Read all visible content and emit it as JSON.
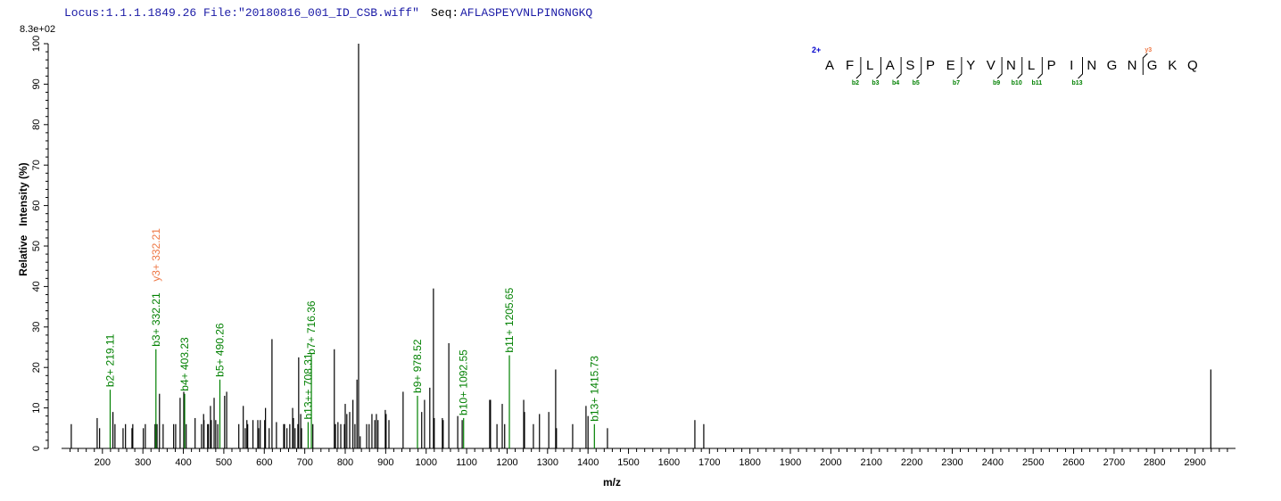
{
  "header": {
    "locus": "Locus:1.1.1.1849.26 File:\"20180816_001_ID_CSB.wiff\"",
    "seq_label": "Seq:",
    "seq_value": "AFLASPEYVNLPINGNGKQ",
    "max_intensity": "8.3e+02"
  },
  "colors": {
    "peak": "#000000",
    "b_ion": "#008000",
    "y_ion": "#ee7744",
    "charge": "#0000cc",
    "header": "#1a1aa6"
  },
  "chart_data": {
    "type": "bar",
    "xlabel": "m/z",
    "ylabel": "Relative   Intensity (%)",
    "xlim": [
      99,
      3000
    ],
    "ylim": [
      0,
      100
    ],
    "x_ticks": [
      200,
      300,
      400,
      500,
      600,
      700,
      800,
      900,
      1000,
      1100,
      1200,
      1300,
      1400,
      1500,
      1600,
      1700,
      1800,
      1900,
      2000,
      2100,
      2200,
      2300,
      2400,
      2500,
      2600,
      2700,
      2800,
      2900
    ],
    "y_ticks": [
      0,
      10,
      20,
      30,
      40,
      50,
      60,
      70,
      80,
      90,
      100
    ],
    "grid": false,
    "peaks": [
      [
        123,
        6
      ],
      [
        187,
        7.5
      ],
      [
        193,
        5
      ],
      [
        226,
        9
      ],
      [
        231,
        6
      ],
      [
        251,
        5
      ],
      [
        257,
        6
      ],
      [
        273,
        5
      ],
      [
        275,
        6
      ],
      [
        301,
        5
      ],
      [
        306,
        6
      ],
      [
        330,
        6
      ],
      [
        335,
        6
      ],
      [
        341,
        13.5
      ],
      [
        350,
        6
      ],
      [
        376,
        6
      ],
      [
        381,
        6
      ],
      [
        392,
        12.5
      ],
      [
        401,
        14
      ],
      [
        407,
        6
      ],
      [
        429,
        7.5
      ],
      [
        445,
        6
      ],
      [
        450,
        8.5
      ],
      [
        451,
        7
      ],
      [
        460,
        6
      ],
      [
        462,
        6
      ],
      [
        467,
        10.5
      ],
      [
        469,
        7
      ],
      [
        476,
        12.5
      ],
      [
        480,
        7
      ],
      [
        485,
        6
      ],
      [
        502,
        13
      ],
      [
        507,
        14
      ],
      [
        537,
        6
      ],
      [
        548,
        10.5
      ],
      [
        553,
        5
      ],
      [
        557,
        7
      ],
      [
        559,
        6
      ],
      [
        572,
        7
      ],
      [
        584,
        7
      ],
      [
        586,
        5
      ],
      [
        590,
        7
      ],
      [
        601,
        7
      ],
      [
        603,
        10
      ],
      [
        612,
        5
      ],
      [
        619,
        27
      ],
      [
        630,
        6.5
      ],
      [
        648,
        6
      ],
      [
        650,
        6
      ],
      [
        656,
        5
      ],
      [
        663,
        6
      ],
      [
        670,
        10
      ],
      [
        672,
        7.5
      ],
      [
        676,
        5
      ],
      [
        683,
        6
      ],
      [
        685,
        22.5
      ],
      [
        690,
        8.5
      ],
      [
        692,
        5
      ],
      [
        720,
        6
      ],
      [
        773,
        24.5
      ],
      [
        776,
        6
      ],
      [
        782,
        6.5
      ],
      [
        789,
        6
      ],
      [
        798,
        6
      ],
      [
        800,
        11
      ],
      [
        804,
        8.5
      ],
      [
        811,
        9
      ],
      [
        819,
        12
      ],
      [
        824,
        6
      ],
      [
        829,
        17
      ],
      [
        833,
        100
      ],
      [
        837,
        3
      ],
      [
        853,
        6
      ],
      [
        859,
        6
      ],
      [
        866,
        8.5
      ],
      [
        873,
        7
      ],
      [
        877,
        8.5
      ],
      [
        881,
        7
      ],
      [
        899,
        9.5
      ],
      [
        901,
        8.5
      ],
      [
        908,
        7
      ],
      [
        943,
        14
      ],
      [
        989,
        9
      ],
      [
        996,
        12
      ],
      [
        1009,
        15
      ],
      [
        1018,
        39.5
      ],
      [
        1020,
        7.5
      ],
      [
        1040,
        7.5
      ],
      [
        1042,
        7
      ],
      [
        1056,
        26
      ],
      [
        1078,
        8
      ],
      [
        1089,
        7
      ],
      [
        1157,
        12
      ],
      [
        1159,
        12
      ],
      [
        1175,
        6
      ],
      [
        1188,
        11
      ],
      [
        1194,
        6
      ],
      [
        1241,
        12
      ],
      [
        1243,
        9
      ],
      [
        1265,
        6
      ],
      [
        1280,
        8.5
      ],
      [
        1303,
        9
      ],
      [
        1320,
        19.5
      ],
      [
        1322,
        5
      ],
      [
        1362,
        6
      ],
      [
        1395,
        10.5
      ],
      [
        1400,
        8
      ],
      [
        1448,
        5
      ],
      [
        1664,
        7
      ],
      [
        1686,
        6
      ],
      [
        2939,
        19.5
      ]
    ],
    "ions": [
      {
        "label": "b2+ 219.11",
        "mz": 219.11,
        "intensity": 14.5,
        "type": "b"
      },
      {
        "label": "b3+ 332.21",
        "mz": 332.21,
        "intensity": 24.5,
        "type": "b"
      },
      {
        "label": "y3+ 332.21",
        "mz": 332.21,
        "intensity": 24.5,
        "type": "y"
      },
      {
        "label": "b4+ 403.23",
        "mz": 403.23,
        "intensity": 13.5,
        "type": "b"
      },
      {
        "label": "b5+ 490.26",
        "mz": 490.26,
        "intensity": 17,
        "type": "b"
      },
      {
        "label": "b13++ 708.31",
        "mz": 708.31,
        "intensity": 6.5,
        "type": "b"
      },
      {
        "label": "b7+ 716.36",
        "mz": 716.36,
        "intensity": 22.5,
        "type": "b"
      },
      {
        "label": "b9+ 978.52",
        "mz": 978.52,
        "intensity": 13,
        "type": "b"
      },
      {
        "label": "b10+ 1092.55",
        "mz": 1092.55,
        "intensity": 7.5,
        "type": "b"
      },
      {
        "label": "b11+ 1205.65",
        "mz": 1205.65,
        "intensity": 23,
        "type": "b"
      },
      {
        "label": "b13+ 1415.73",
        "mz": 1415.73,
        "intensity": 6,
        "type": "b"
      }
    ]
  },
  "sequence_map": {
    "charge": "2+",
    "residues": [
      "A",
      "F",
      "L",
      "A",
      "S",
      "P",
      "E",
      "Y",
      "V",
      "N",
      "L",
      "P",
      "I",
      "N",
      "G",
      "N",
      "G",
      "K",
      "Q"
    ],
    "b_fragments": [
      {
        "label": "b2",
        "after": 2
      },
      {
        "label": "b3",
        "after": 3
      },
      {
        "label": "b4",
        "after": 4
      },
      {
        "label": "b5",
        "after": 5
      },
      {
        "label": "b7",
        "after": 7
      },
      {
        "label": "b9",
        "after": 9
      },
      {
        "label": "b10",
        "after": 10
      },
      {
        "label": "b11",
        "after": 11
      },
      {
        "label": "b13",
        "after": 13
      }
    ],
    "y_fragments": [
      {
        "label": "y3",
        "before_last": 3
      }
    ]
  }
}
